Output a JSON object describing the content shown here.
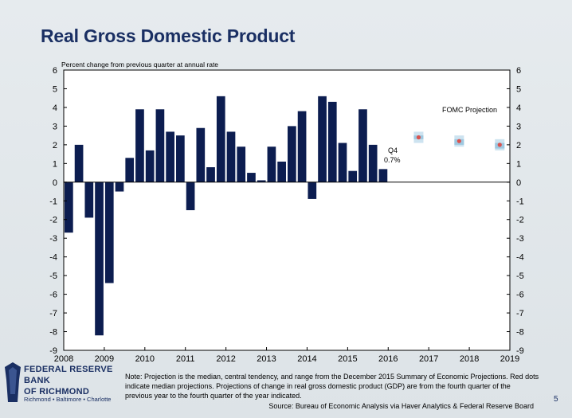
{
  "title": "Real Gross Domestic Product",
  "chart_data": {
    "type": "bar",
    "ylabel": "Percent change from previous quarter at annual rate",
    "ylim": [
      -9,
      6
    ],
    "yticks": [
      6,
      5,
      4,
      3,
      2,
      1,
      0,
      -1,
      -2,
      -3,
      -4,
      -5,
      -6,
      -7,
      -8,
      -9
    ],
    "xlim": [
      2008,
      2019
    ],
    "xticks": [
      "2008",
      "2009",
      "2010",
      "2011",
      "2012",
      "2013",
      "2014",
      "2015",
      "2016",
      "2017",
      "2018",
      "2019"
    ],
    "series": [
      {
        "quarters": [
          "2008Q1",
          "2008Q2",
          "2008Q3",
          "2008Q4",
          "2009Q1",
          "2009Q2",
          "2009Q3",
          "2009Q4",
          "2010Q1",
          "2010Q2",
          "2010Q3",
          "2010Q4",
          "2011Q1",
          "2011Q2",
          "2011Q3",
          "2011Q4",
          "2012Q1",
          "2012Q2",
          "2012Q3",
          "2012Q4",
          "2013Q1",
          "2013Q2",
          "2013Q3",
          "2013Q4",
          "2014Q1",
          "2014Q2",
          "2014Q3",
          "2014Q4",
          "2015Q1",
          "2015Q2",
          "2015Q3",
          "2015Q4"
        ],
        "values": [
          -2.7,
          2.0,
          -1.9,
          -8.2,
          -5.4,
          -0.5,
          1.3,
          3.9,
          1.7,
          3.9,
          2.7,
          2.5,
          -1.5,
          2.9,
          0.8,
          4.6,
          2.7,
          1.9,
          0.5,
          0.1,
          1.9,
          1.1,
          3.0,
          3.8,
          -0.9,
          4.6,
          4.3,
          2.1,
          0.6,
          3.9,
          2.0,
          0.7
        ],
        "color": "#0c1d50"
      }
    ],
    "projection": {
      "label": "FOMC Projection",
      "points": [
        {
          "year": 2016,
          "median": 2.4,
          "range_low": 2.1,
          "range_high": 2.7,
          "ct_low": 2.3,
          "ct_high": 2.5
        },
        {
          "year": 2017,
          "median": 2.2,
          "range_low": 1.9,
          "range_high": 2.5,
          "ct_low": 2.0,
          "ct_high": 2.3
        },
        {
          "year": 2018,
          "median": 2.0,
          "range_low": 1.7,
          "range_high": 2.3,
          "ct_low": 1.8,
          "ct_high": 2.1
        }
      ],
      "range_color": "#cde3f0",
      "central_color": "#9ec8e0",
      "median_color": "#d9534f"
    },
    "annotation": {
      "line1": "Q4",
      "line2": "0.7%"
    },
    "grid": false
  },
  "note": "Note: Projection is the median, central tendency, and range from the December 2015 Summary of Economic Projections. Red dots indicate median projections. Projections of change in real gross domestic product (GDP) are from the fourth quarter of the previous year to the fourth quarter of the year indicated.",
  "source": "Source: Bureau of Economic Analysis via Haver Analytics & Federal Reserve Board",
  "page_number": "5",
  "logo": {
    "name_line1": "FEDERAL RESERVE BANK",
    "name_line2": "OF RICHMOND",
    "cities": "Richmond • Baltimore • Charlotte"
  }
}
